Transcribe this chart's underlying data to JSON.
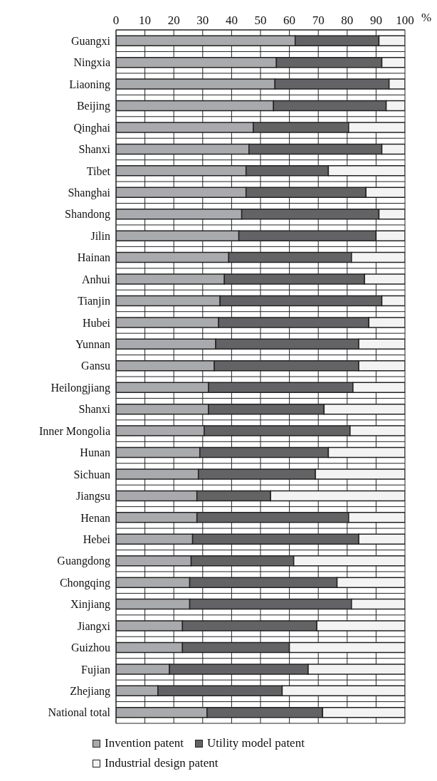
{
  "chart_data": {
    "type": "bar",
    "orientation": "horizontal",
    "stacked": true,
    "xlabel": "%",
    "categories": [
      "Guangxi",
      "Ningxia",
      "Liaoning",
      "Beijing",
      "Qinghai",
      "Shanxi",
      "Tibet",
      "Shanghai",
      "Shandong",
      "Jilin",
      "Hainan",
      "Anhui",
      "Tianjin",
      "Hubei",
      "Yunnan",
      "Gansu",
      "Heilongjiang",
      "Shanxi",
      "Inner Mongolia",
      "Hunan",
      "Sichuan",
      "Jiangsu",
      "Henan",
      "Hebei",
      "Guangdong",
      "Chongqing",
      "Xinjiang",
      "Jiangxi",
      "Guizhou",
      "Fujian",
      "Zhejiang",
      "National total"
    ],
    "series": [
      {
        "name": "Invention patent",
        "color": "#a9aaad",
        "values": [
          62,
          55.5,
          55,
          54.5,
          47.5,
          46,
          45,
          45,
          43.5,
          42.5,
          39,
          37.5,
          36,
          35.5,
          34.5,
          34,
          32,
          32,
          30.5,
          29,
          28.5,
          28,
          28,
          26.5,
          26,
          25.5,
          25.5,
          23,
          23,
          18.5,
          14.5,
          31.5
        ]
      },
      {
        "name": "Utility model patent",
        "color": "#636365",
        "values": [
          29,
          36.5,
          39.5,
          39,
          33,
          46,
          28.5,
          41.5,
          47.5,
          47.5,
          42.5,
          48.5,
          56,
          52,
          49.5,
          50,
          50,
          40,
          50.5,
          44.5,
          40.5,
          25.5,
          52.5,
          57.5,
          35.5,
          51,
          56,
          46.5,
          37,
          48,
          43,
          40
        ]
      },
      {
        "name": "Industrial design patent",
        "color": "#f3f3f3",
        "values": [
          9,
          8,
          5.5,
          6.5,
          19.5,
          8,
          26.5,
          13.5,
          9,
          10,
          18.5,
          14,
          8,
          12.5,
          16,
          16,
          18,
          28,
          19,
          26.5,
          31,
          46.5,
          19.5,
          16,
          38.5,
          23.5,
          18.5,
          30.5,
          40,
          33.5,
          42.5,
          28.5
        ]
      }
    ],
    "xlim": [
      0,
      100
    ],
    "xticks": [
      0,
      10,
      20,
      30,
      40,
      50,
      60,
      70,
      80,
      90,
      100
    ],
    "grid": true,
    "legend": "bottom"
  }
}
